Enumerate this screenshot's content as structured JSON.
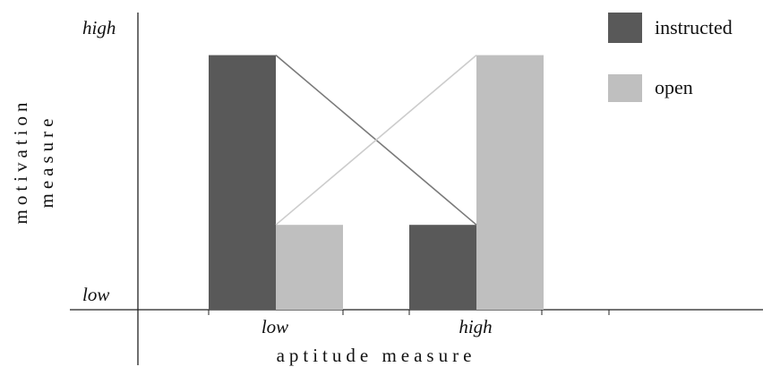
{
  "chart_data": {
    "type": "bar",
    "categories": [
      "low",
      "high"
    ],
    "series": [
      {
        "name": "instructed",
        "values": [
          0.9,
          0.3
        ]
      },
      {
        "name": "open",
        "values": [
          0.3,
          0.9
        ]
      }
    ],
    "xlabel": "aptitude measure",
    "ylabel_lines": [
      "motivation",
      "measure"
    ],
    "ytick_labels": [
      "high",
      "low"
    ],
    "ylim": [
      0,
      1
    ],
    "ytick_values": [
      0.95,
      0
    ],
    "interaction_lines": true,
    "legend_position": "top-right",
    "grid": false,
    "colors": {
      "instructed": "#595959",
      "open": "#bfbfbf",
      "instructed_line": "#7a7a7a",
      "open_line": "#cccccc",
      "axis": "#222222"
    }
  }
}
